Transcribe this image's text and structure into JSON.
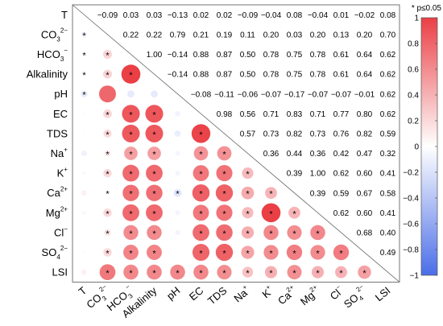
{
  "chart_data": {
    "type": "heatmap",
    "variables": [
      {
        "base": "T",
        "sub": "",
        "sup": ""
      },
      {
        "base": "CO",
        "sub": "3",
        "sup": "2−"
      },
      {
        "base": "HCO",
        "sub": "3",
        "sup": "−"
      },
      {
        "base": "Alkalinity",
        "sub": "",
        "sup": ""
      },
      {
        "base": "pH",
        "sub": "",
        "sup": ""
      },
      {
        "base": "EC",
        "sub": "",
        "sup": ""
      },
      {
        "base": "TDS",
        "sub": "",
        "sup": ""
      },
      {
        "base": "Na",
        "sub": "",
        "sup": "+"
      },
      {
        "base": "K",
        "sub": "",
        "sup": "+"
      },
      {
        "base": "Ca",
        "sub": "",
        "sup": "2+"
      },
      {
        "base": "Mg",
        "sub": "",
        "sup": "2+"
      },
      {
        "base": "Cl",
        "sub": "",
        "sup": "−"
      },
      {
        "base": "SO",
        "sub": "4",
        "sup": "2−"
      },
      {
        "base": "LSI",
        "sub": "",
        "sup": ""
      }
    ],
    "upper_labels": [
      [
        "",
        "−0.09",
        "0.03",
        "0.03",
        "−0.13",
        "0.02",
        "0.02",
        "−0.09",
        "−0.04",
        "0.08",
        "−0.04",
        "0.01",
        "−0.02",
        "0.08"
      ],
      [
        "",
        "",
        "0.22",
        "0.22",
        "0.79",
        "0.21",
        "0.19",
        "0.11",
        "0.20",
        "0.03",
        "0.20",
        "0.13",
        "0.20",
        "0.70"
      ],
      [
        "",
        "",
        "",
        "1.00",
        "−0.14",
        "0.88",
        "0.87",
        "0.50",
        "0.78",
        "0.75",
        "0.78",
        "0.61",
        "0.64",
        "0.62"
      ],
      [
        "",
        "",
        "",
        "",
        "−0.14",
        "0.88",
        "0.87",
        "0.50",
        "0.78",
        "0.75",
        "0.78",
        "0.61",
        "0.64",
        "0.62"
      ],
      [
        "",
        "",
        "",
        "",
        "",
        "−0.08",
        "−0.11",
        "−0.06",
        "−0.07",
        "−0.17",
        "−0.07",
        "−0.07",
        "−0.01",
        "0.62"
      ],
      [
        "",
        "",
        "",
        "",
        "",
        "",
        "0.98",
        "0.56",
        "0.71",
        "0.83",
        "0.71",
        "0.77",
        "0.80",
        "0.62"
      ],
      [
        "",
        "",
        "",
        "",
        "",
        "",
        "",
        "0.57",
        "0.73",
        "0.82",
        "0.73",
        "0.76",
        "0.82",
        "0.59"
      ],
      [
        "",
        "",
        "",
        "",
        "",
        "",
        "",
        "",
        "0.36",
        "0.44",
        "0.36",
        "0.42",
        "0.47",
        "0.32"
      ],
      [
        "",
        "",
        "",
        "",
        "",
        "",
        "",
        "",
        "",
        "0.39",
        "1.00",
        "0.62",
        "0.60",
        "0.41"
      ],
      [
        "",
        "",
        "",
        "",
        "",
        "",
        "",
        "",
        "",
        "",
        "0.39",
        "0.59",
        "0.67",
        "0.58"
      ],
      [
        "",
        "",
        "",
        "",
        "",
        "",
        "",
        "",
        "",
        "",
        "",
        "0.62",
        "0.60",
        "0.41"
      ],
      [
        "",
        "",
        "",
        "",
        "",
        "",
        "",
        "",
        "",
        "",
        "",
        "",
        "0.68",
        "0.40"
      ],
      [
        "",
        "",
        "",
        "",
        "",
        "",
        "",
        "",
        "",
        "",
        "",
        "",
        "",
        "0.49"
      ],
      [
        "",
        "",
        "",
        "",
        "",
        "",
        "",
        "",
        "",
        "",
        "",
        "",
        "",
        ""
      ]
    ],
    "significant_pairs": [
      [
        0,
        1
      ],
      [
        0,
        2
      ],
      [
        0,
        3
      ],
      [
        0,
        4
      ],
      [
        1,
        2
      ],
      [
        1,
        3
      ],
      [
        1,
        5
      ],
      [
        1,
        6
      ],
      [
        1,
        7
      ],
      [
        1,
        8
      ],
      [
        1,
        9
      ],
      [
        1,
        10
      ],
      [
        1,
        11
      ],
      [
        1,
        12
      ],
      [
        1,
        13
      ],
      [
        2,
        3
      ],
      [
        2,
        5
      ],
      [
        2,
        6
      ],
      [
        2,
        7
      ],
      [
        2,
        8
      ],
      [
        2,
        9
      ],
      [
        2,
        10
      ],
      [
        2,
        11
      ],
      [
        2,
        12
      ],
      [
        2,
        13
      ],
      [
        3,
        5
      ],
      [
        3,
        6
      ],
      [
        3,
        7
      ],
      [
        3,
        8
      ],
      [
        3,
        9
      ],
      [
        3,
        10
      ],
      [
        3,
        11
      ],
      [
        3,
        12
      ],
      [
        3,
        13
      ],
      [
        4,
        9
      ],
      [
        4,
        13
      ],
      [
        5,
        6
      ],
      [
        5,
        7
      ],
      [
        5,
        8
      ],
      [
        5,
        9
      ],
      [
        5,
        10
      ],
      [
        5,
        11
      ],
      [
        5,
        12
      ],
      [
        5,
        13
      ],
      [
        6,
        7
      ],
      [
        6,
        8
      ],
      [
        6,
        9
      ],
      [
        6,
        10
      ],
      [
        6,
        11
      ],
      [
        6,
        12
      ],
      [
        6,
        13
      ],
      [
        7,
        8
      ],
      [
        7,
        9
      ],
      [
        7,
        10
      ],
      [
        7,
        11
      ],
      [
        7,
        12
      ],
      [
        7,
        13
      ],
      [
        8,
        9
      ],
      [
        8,
        10
      ],
      [
        8,
        11
      ],
      [
        8,
        12
      ],
      [
        8,
        13
      ],
      [
        9,
        10
      ],
      [
        9,
        11
      ],
      [
        9,
        12
      ],
      [
        9,
        13
      ],
      [
        10,
        11
      ],
      [
        10,
        12
      ],
      [
        10,
        13
      ],
      [
        11,
        12
      ],
      [
        11,
        13
      ],
      [
        12,
        13
      ]
    ],
    "legend_note": "* p≤0.05",
    "colorbar": {
      "ticks": [
        "−1",
        "−0.8",
        "−0.6",
        "−0.4",
        "−0.2",
        "0",
        "0.2",
        "0.4",
        "0.6",
        "0.8",
        "1"
      ],
      "range": [
        -1,
        1
      ],
      "low_color": "#4b6ee8",
      "mid_color": "#ffffff",
      "high_color": "#ea3f45"
    }
  }
}
